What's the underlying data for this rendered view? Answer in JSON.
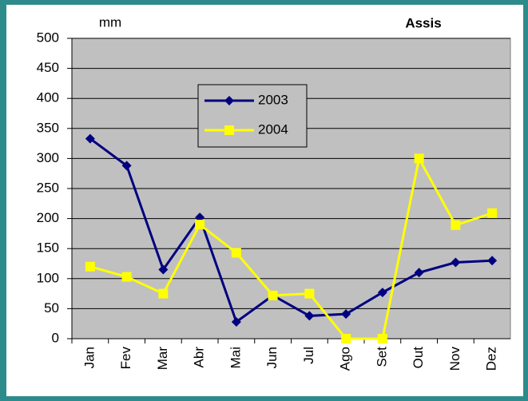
{
  "chart_data": {
    "type": "line",
    "title": "Assis",
    "y_label": "mm",
    "categories": [
      "Jan",
      "Fev",
      "Mar",
      "Abr",
      "Mai",
      "Jun",
      "Jul",
      "Ago",
      "Set",
      "Out",
      "Nov",
      "Dez"
    ],
    "series": [
      {
        "name": "2003",
        "color": "#000080",
        "marker": "diamond",
        "values": [
          333,
          288,
          115,
          202,
          28,
          72,
          38,
          41,
          77,
          110,
          127,
          130
        ]
      },
      {
        "name": "2004",
        "color": "#ffff00",
        "marker": "square",
        "values": [
          120,
          103,
          75,
          190,
          143,
          72,
          75,
          0,
          0,
          300,
          189,
          209
        ]
      }
    ],
    "ylim": [
      0,
      500
    ],
    "yticks": [
      0,
      50,
      100,
      150,
      200,
      250,
      300,
      350,
      400,
      450,
      500
    ],
    "grid": true,
    "plot_background": "#c0c0c0"
  }
}
